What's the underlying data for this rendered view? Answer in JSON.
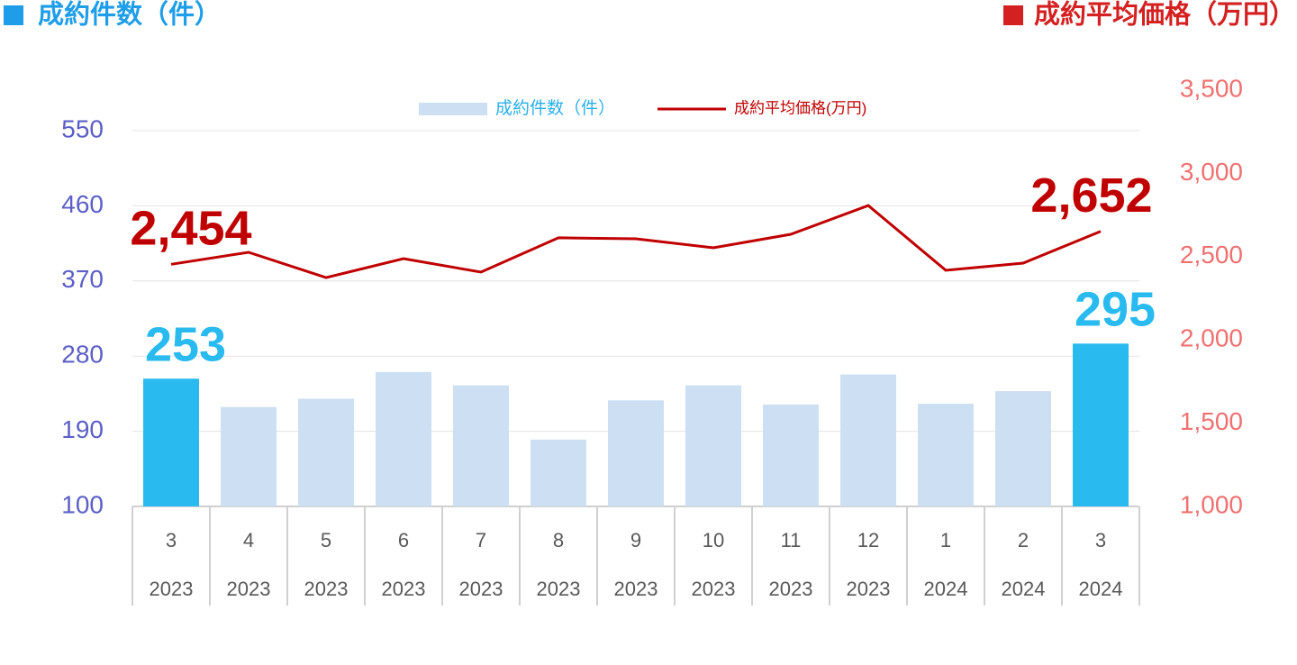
{
  "chart_data": {
    "type": "bar_line",
    "left_axis_title": "成約件数（件）",
    "right_axis_title": "成約平均価格（万円）",
    "categories": [
      "3",
      "4",
      "5",
      "6",
      "7",
      "8",
      "9",
      "10",
      "11",
      "12",
      "1",
      "2",
      "3"
    ],
    "years": [
      "2023",
      "2023",
      "2023",
      "2023",
      "2023",
      "2023",
      "2023",
      "2023",
      "2023",
      "2023",
      "2024",
      "2024",
      "2024"
    ],
    "series": [
      {
        "name": "成約件数（件）",
        "type": "bar",
        "color": "#cddff3",
        "highlight_color": "#29bbef",
        "highlighted": [
          true,
          false,
          false,
          false,
          false,
          false,
          false,
          false,
          false,
          false,
          false,
          false,
          true
        ],
        "values": [
          253,
          219,
          229,
          261,
          245,
          180,
          227,
          245,
          222,
          258,
          223,
          238,
          295
        ],
        "value_labels": [
          "253",
          null,
          null,
          null,
          null,
          null,
          null,
          null,
          null,
          null,
          null,
          null,
          "295"
        ]
      },
      {
        "name": "成約平均価格(万円)",
        "type": "line",
        "axis": "y2",
        "color": "#c00000",
        "values": [
          2454,
          2526,
          2374,
          2488,
          2407,
          2613,
          2607,
          2553,
          2634,
          2807,
          2418,
          2461,
          2652
        ],
        "value_labels": [
          "2,454",
          null,
          null,
          null,
          null,
          null,
          null,
          null,
          null,
          null,
          null,
          null,
          "2,652"
        ]
      }
    ],
    "ylim": [
      100,
      550
    ],
    "yticks": [
      100,
      190,
      280,
      370,
      460,
      550
    ],
    "y2lim": [
      1000,
      3500
    ],
    "y2ticks": [
      {
        "value": 1000,
        "label": "1,000"
      },
      {
        "value": 1500,
        "label": "1,500"
      },
      {
        "value": 2000,
        "label": "2,000"
      },
      {
        "value": 2500,
        "label": "2,500"
      },
      {
        "value": 3000,
        "label": "3,000"
      },
      {
        "value": 3500,
        "label": "3,500"
      }
    ],
    "grid": true
  }
}
